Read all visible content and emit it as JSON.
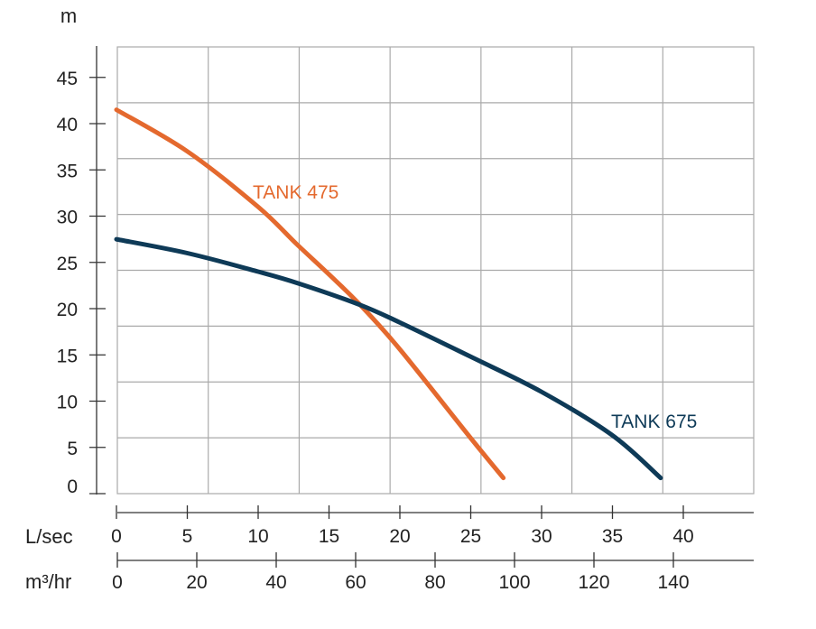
{
  "chart_data": {
    "type": "line",
    "title": "",
    "ylabel": "m",
    "ylim": [
      0,
      48
    ],
    "yticks": [
      0,
      5,
      10,
      15,
      20,
      25,
      30,
      35,
      40,
      45
    ],
    "x_axes": [
      {
        "label": "L/sec",
        "lim": [
          0,
          45
        ],
        "ticks": [
          0,
          5,
          10,
          15,
          20,
          25,
          30,
          35,
          40
        ]
      },
      {
        "label": "m³/hr",
        "lim": [
          0,
          162
        ],
        "ticks": [
          0,
          20,
          40,
          60,
          80,
          100,
          120,
          140
        ]
      }
    ],
    "x_units": "L/sec",
    "grid": true,
    "series": [
      {
        "name": "TANK 475",
        "color": "#E4692E",
        "x": [
          0,
          5,
          10,
          12.7,
          15,
          17.2,
          20,
          25,
          27.3
        ],
        "y": [
          41.5,
          37,
          31,
          27,
          23.7,
          20.4,
          15.6,
          6,
          1.7
        ]
      },
      {
        "name": "TANK 675",
        "color": "#0E3A57",
        "x": [
          0,
          5,
          10,
          12.9,
          17.2,
          20,
          25,
          30,
          35,
          38.4
        ],
        "y": [
          27.5,
          26,
          24,
          22.7,
          20.4,
          18.5,
          14.8,
          11,
          6.3,
          1.7
        ]
      }
    ]
  }
}
